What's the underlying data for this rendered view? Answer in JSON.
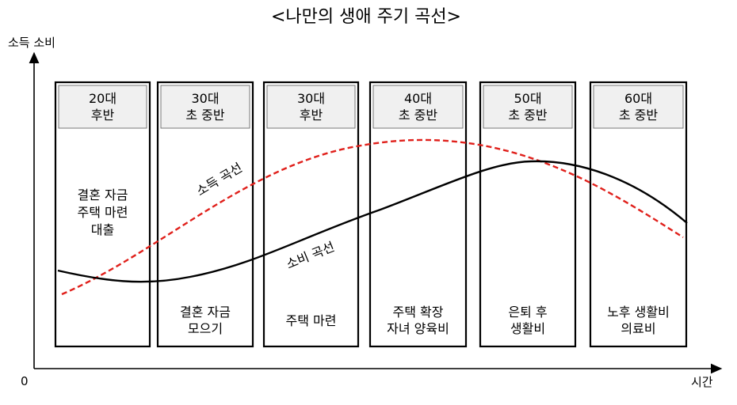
{
  "title": "<나만의 생애 주기 곡선>",
  "y_axis_label": "소득 소비",
  "x_axis_label": "시간",
  "origin_label": "0",
  "income_curve": {
    "label": "소득 곡선",
    "color": "#e0201b"
  },
  "consumption_curve": {
    "label": "소비 곡선",
    "color": "#000000"
  },
  "stages": [
    {
      "header": [
        "20대",
        "후반"
      ],
      "top_text": [
        "결혼 자금",
        "주택 마련",
        "대출"
      ],
      "bottom_text": []
    },
    {
      "header": [
        "30대",
        "초 중반"
      ],
      "top_text": [],
      "bottom_text": [
        "결혼 자금",
        "모으기"
      ]
    },
    {
      "header": [
        "30대",
        "후반"
      ],
      "top_text": [],
      "bottom_text": [
        "주택 마련"
      ]
    },
    {
      "header": [
        "40대",
        "초 중반"
      ],
      "top_text": [],
      "bottom_text": [
        "주택 확장",
        "자녀 양육비"
      ]
    },
    {
      "header": [
        "50대",
        "초 중반"
      ],
      "top_text": [],
      "bottom_text": [
        "은퇴 후",
        "생활비"
      ]
    },
    {
      "header": [
        "60대",
        "초 중반"
      ],
      "top_text": [],
      "bottom_text": [
        "노후 생활비",
        "의료비"
      ]
    }
  ]
}
